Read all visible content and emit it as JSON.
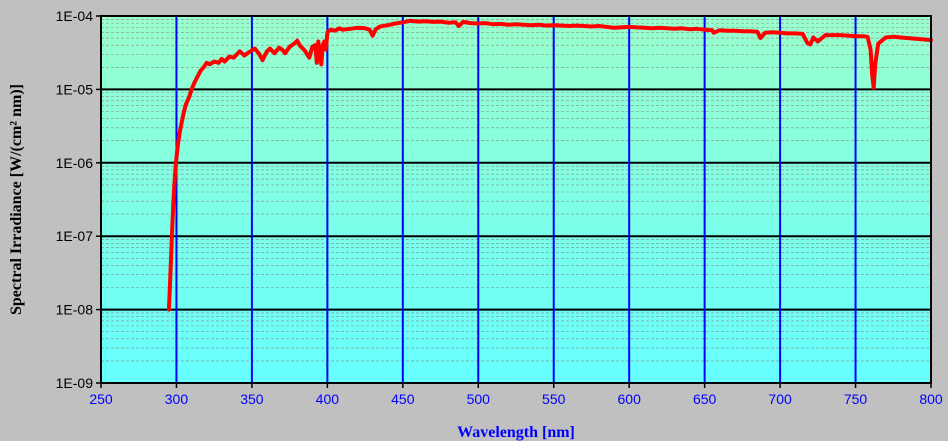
{
  "chart_data": {
    "type": "line",
    "title": "",
    "xlabel": "Wavelength [nm]",
    "ylabel": "Spectral Irradiance [W/(cm² nm)]",
    "xlim": [
      250,
      800
    ],
    "ylim": [
      1e-09,
      0.0001
    ],
    "y_scale": "log",
    "grid": true,
    "x_ticks": [
      "250",
      "300",
      "350",
      "400",
      "450",
      "500",
      "550",
      "600",
      "650",
      "700",
      "750",
      "800"
    ],
    "y_ticks": [
      "1E-09",
      "1E-08",
      "1E-07",
      "1E-06",
      "1E-05",
      "1E-04"
    ],
    "colors": {
      "line": "#ff0000",
      "major_grid_x": "#0000ff",
      "major_grid_y": "#000000",
      "minor_grid": "#888888",
      "plot_top": "#99ffcc",
      "plot_bottom": "#66ffff",
      "page_background": "#c0c0c0"
    },
    "series": [
      {
        "x": [
          295,
          296,
          297,
          298,
          299,
          300,
          301,
          302,
          303,
          304,
          305,
          306,
          307,
          308,
          309,
          310,
          312,
          314,
          316,
          318,
          320,
          322,
          325,
          328,
          330,
          332,
          335,
          338,
          340,
          342,
          345,
          348,
          350,
          352,
          355,
          357,
          360,
          362,
          365,
          368,
          370,
          372,
          375,
          378,
          380,
          382,
          385,
          388,
          390,
          392,
          393,
          394,
          395,
          396,
          397,
          398,
          399,
          400,
          402,
          405,
          408,
          410,
          415,
          420,
          425,
          428,
          430,
          432,
          435,
          440,
          445,
          450,
          455,
          460,
          465,
          470,
          475,
          480,
          485,
          487,
          490,
          495,
          500,
          505,
          510,
          515,
          520,
          525,
          530,
          535,
          540,
          545,
          550,
          555,
          560,
          565,
          570,
          575,
          580,
          585,
          590,
          595,
          600,
          605,
          610,
          615,
          620,
          625,
          630,
          635,
          640,
          645,
          650,
          655,
          656,
          660,
          665,
          670,
          675,
          680,
          685,
          687,
          690,
          695,
          700,
          705,
          710,
          715,
          718,
          720,
          722,
          725,
          730,
          735,
          740,
          745,
          750,
          755,
          758,
          760,
          761,
          762,
          763,
          765,
          770,
          775,
          780,
          785,
          790,
          795,
          800
        ],
        "y": [
          1e-08,
          3e-08,
          1e-07,
          3e-07,
          6.5e-07,
          1.2e-06,
          1.8e-06,
          2.5e-06,
          3.2e-06,
          4e-06,
          5e-06,
          6e-06,
          6.8e-06,
          7.5e-06,
          8.5e-06,
          1e-05,
          1.25e-05,
          1.5e-05,
          1.8e-05,
          2e-05,
          2.3e-05,
          2.2e-05,
          2.4e-05,
          2.3e-05,
          2.6e-05,
          2.4e-05,
          2.8e-05,
          2.7e-05,
          3e-05,
          3.3e-05,
          2.9e-05,
          3.2e-05,
          3.4e-05,
          3.6e-05,
          3e-05,
          2.5e-05,
          3.3e-05,
          3.6e-05,
          3.1e-05,
          3.7e-05,
          3.5e-05,
          3.1e-05,
          3.8e-05,
          4.2e-05,
          4.6e-05,
          3.9e-05,
          3.4e-05,
          2.7e-05,
          3.8e-05,
          4e-05,
          2.3e-05,
          4.5e-05,
          3e-05,
          2.2e-05,
          4e-05,
          4.5e-05,
          3.5e-05,
          6e-05,
          6.5e-05,
          6.3e-05,
          6.8e-05,
          6.5e-05,
          6.7e-05,
          6.9e-05,
          6.8e-05,
          6.5e-05,
          5.4e-05,
          6.6e-05,
          7.2e-05,
          7.5e-05,
          7.9e-05,
          8.2e-05,
          8.6e-05,
          8.4e-05,
          8.5e-05,
          8.3e-05,
          8.4e-05,
          8.1e-05,
          8.2e-05,
          7.3e-05,
          8.3e-05,
          8e-05,
          7.9e-05,
          8e-05,
          7.7e-05,
          7.8e-05,
          7.6e-05,
          7.7e-05,
          7.6e-05,
          7.5e-05,
          7.6e-05,
          7.4e-05,
          7.5e-05,
          7.4e-05,
          7.3e-05,
          7.4e-05,
          7.3e-05,
          7.2e-05,
          7.3e-05,
          7.1e-05,
          6.9e-05,
          7e-05,
          7.1e-05,
          7e-05,
          6.9e-05,
          6.8e-05,
          6.9e-05,
          6.8e-05,
          6.7e-05,
          6.8e-05,
          6.6e-05,
          6.7e-05,
          6.5e-05,
          6.4e-05,
          5.9e-05,
          6.4e-05,
          6.3e-05,
          6.3e-05,
          6.2e-05,
          6.2e-05,
          6.1e-05,
          5e-05,
          5.9e-05,
          6e-05,
          5.9e-05,
          5.8e-05,
          5.8e-05,
          5.7e-05,
          4.3e-05,
          4.1e-05,
          5.1e-05,
          4.5e-05,
          5.5e-05,
          5.5e-05,
          5.5e-05,
          5.4e-05,
          5.3e-05,
          5.3e-05,
          5.2e-05,
          3.5e-05,
          1.6e-05,
          1.05e-05,
          2.2e-05,
          4.2e-05,
          5.1e-05,
          5.2e-05,
          5.1e-05,
          5e-05,
          4.9e-05,
          4.8e-05,
          4.7e-05
        ]
      }
    ]
  }
}
